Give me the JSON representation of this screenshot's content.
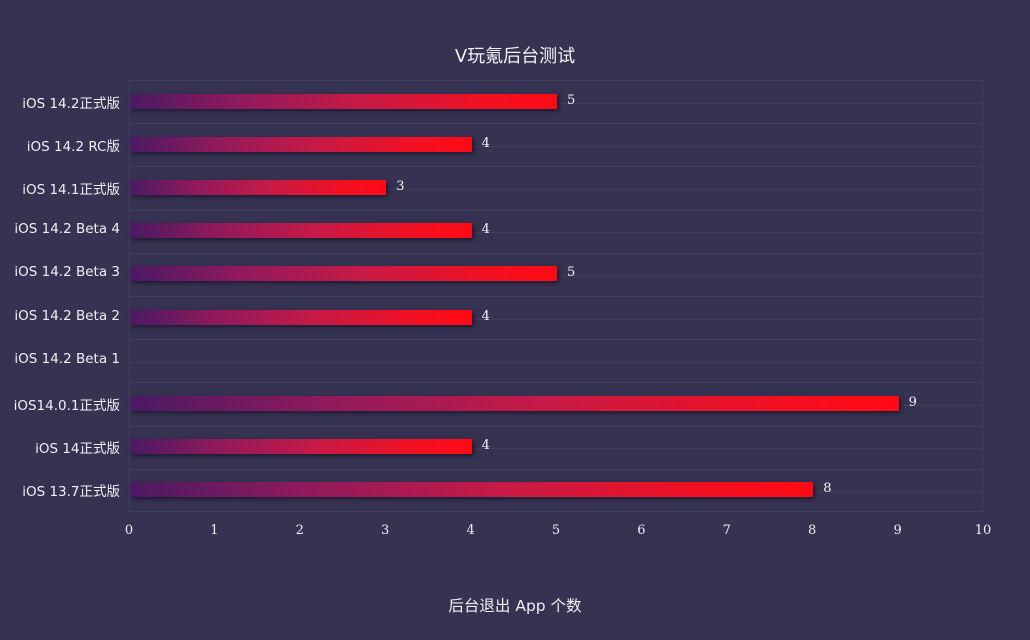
{
  "chart_data": {
    "type": "bar",
    "orientation": "horizontal",
    "title": "V玩氪后台测试",
    "xlabel": "后台退出 App 个数",
    "ylabel": "",
    "xlim": [
      0,
      10
    ],
    "xticks": [
      "0",
      "1",
      "2",
      "3",
      "4",
      "5",
      "6",
      "7",
      "8",
      "9",
      "10"
    ],
    "grid": true,
    "legend": null,
    "categories": [
      "iOS 14.2正式版",
      "iOS 14.2 RC版",
      "iOS 14.1正式版",
      "iOS 14.2 Beta 4",
      "iOS 14.2 Beta 3",
      "iOS 14.2 Beta 2",
      "iOS 14.2 Beta 1",
      "iOS14.0.1正式版",
      "iOS 14正式版",
      "iOS 13.7正式版"
    ],
    "values": [
      5,
      4,
      3,
      4,
      5,
      4,
      null,
      9,
      4,
      8
    ],
    "value_labels": [
      "5",
      "4",
      "3",
      "4",
      "5",
      "4",
      "",
      "9",
      "4",
      "8"
    ],
    "colors": {
      "bar_start": "#4a1a63",
      "bar_end": "#ff0a14",
      "background": "#363251"
    }
  }
}
